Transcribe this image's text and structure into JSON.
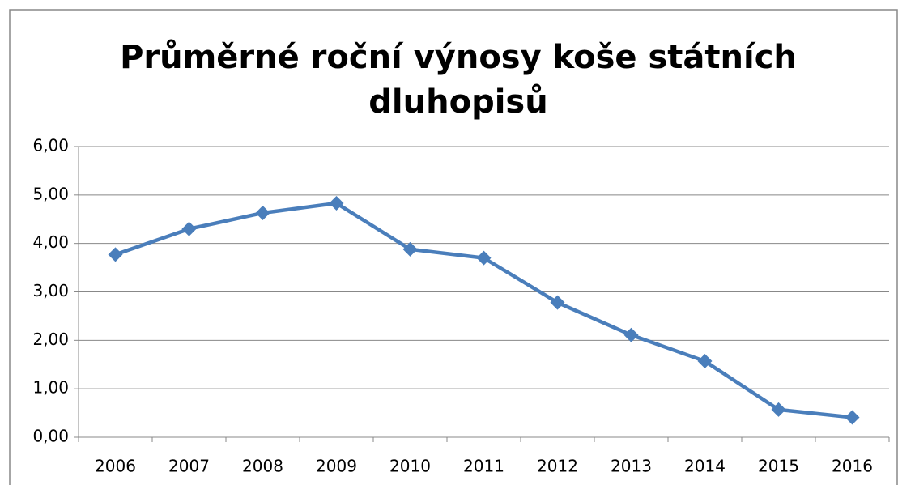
{
  "chart_data": {
    "type": "line",
    "title": [
      "Průměrné roční výnosy koše státních",
      "dluhopisů"
    ],
    "categories": [
      "2006",
      "2007",
      "2008",
      "2009",
      "2010",
      "2011",
      "2012",
      "2013",
      "2014",
      "2015",
      "2016"
    ],
    "values": [
      3.77,
      4.3,
      4.63,
      4.83,
      3.88,
      3.7,
      2.78,
      2.11,
      1.57,
      0.57,
      0.41
    ],
    "color": "#4a7ebb",
    "ylim": [
      0,
      6
    ],
    "yticks": [
      {
        "value": 0,
        "label": "0,00"
      },
      {
        "value": 1,
        "label": "1,00"
      },
      {
        "value": 2,
        "label": "2,00"
      },
      {
        "value": 3,
        "label": "3,00"
      },
      {
        "value": 4,
        "label": "4,00"
      },
      {
        "value": 5,
        "label": "5,00"
      },
      {
        "value": 6,
        "label": "6,00"
      }
    ],
    "grid": true
  }
}
